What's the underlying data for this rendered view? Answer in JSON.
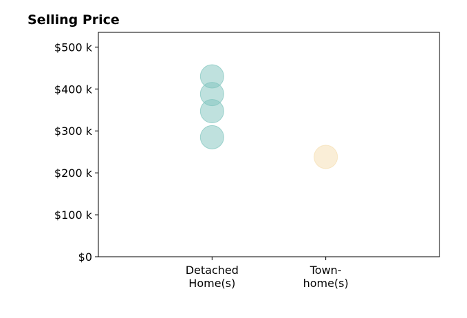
{
  "chart_data": {
    "type": "scatter",
    "title": "Selling Price",
    "xlabel": "",
    "ylabel": "",
    "categories": [
      [
        "Detached",
        "Home(s)"
      ],
      [
        "Town-",
        "home(s)"
      ]
    ],
    "series": [
      {
        "category": 0,
        "color": "#7fc4bd",
        "values": [
          285000,
          347000,
          388000,
          430000
        ]
      },
      {
        "category": 1,
        "color": "#f5deb0",
        "values": [
          238000
        ]
      }
    ],
    "ylim": [
      0,
      535000
    ],
    "xlim": [
      -1,
      2
    ],
    "y_ticks": [
      0,
      100000,
      200000,
      300000,
      400000,
      500000
    ],
    "y_tick_labels": [
      "$0",
      "$100 k",
      "$200 k",
      "$300 k",
      "$400 k",
      "$500 k"
    ],
    "grid": false,
    "legend": "none",
    "marker_opacity": 0.5
  }
}
